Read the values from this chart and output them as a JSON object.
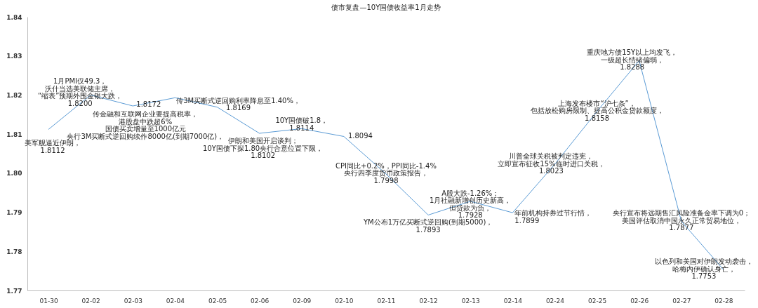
{
  "chart_data": {
    "type": "line",
    "title": "债市复盘—10Y国债收益率1月走势",
    "categories": [
      "01-30",
      "02-02",
      "02-03",
      "02-04",
      "02-05",
      "02-06",
      "02-09",
      "02-10",
      "02-11",
      "02-12",
      "02-13",
      "02-14",
      "02-24",
      "02-25",
      "02-26",
      "02-27",
      "02-28"
    ],
    "series": [
      {
        "color": "#5b9bd5",
        "values": [
          1.8112,
          1.82,
          1.8172,
          1.8193,
          1.8169,
          1.8102,
          1.8114,
          1.8094,
          1.7998,
          1.7893,
          1.7928,
          1.7899,
          1.8023,
          1.8158,
          1.8288,
          1.7877,
          1.7753
        ],
        "value_labels": [
          "1.8112",
          "1.8200",
          "1.8172",
          null,
          "1.8169",
          "1.8102",
          "1.8114",
          "1.8094",
          "1.7998",
          "1.7893",
          "1.7928",
          "1.7899",
          "1.8023",
          "1.8158",
          "1.8288",
          "1.7877",
          "1.7753"
        ]
      }
    ],
    "ylim": [
      1.77,
      1.84
    ],
    "yticks": [
      1.77,
      1.78,
      1.79,
      {
        "value": 1.8,
        "label": "1.80"
      },
      1.81,
      1.82,
      1.83,
      1.84
    ],
    "grid": false,
    "marker": "none",
    "line_style": "solid",
    "annotations": [
      {
        "text": "美军舰逼近伊朗，",
        "x": "01-30",
        "y": 1.8112
      },
      {
        "text": "1月PMI仅49.3，",
        "x": "02-02",
        "y": 1.82
      },
      {
        "text": "沃什当选美联储主席，",
        "x": "02-02",
        "y": 1.82
      },
      {
        "text": "“缩表”预期外围金银大跌，",
        "x": "02-02",
        "y": 1.82
      },
      {
        "text": "传金融和互联网企业要提高税率，",
        "x": "02-03",
        "y": 1.8172
      },
      {
        "text": "港股盘中跌超6%",
        "x": "02-03",
        "y": 1.8172
      },
      "国债买卖增量至1000亿元",
      "央行3M买断式逆回购续作8000亿(到期7000亿)，",
      {
        "text": "传3M买断式逆回购利率降息至1.40%，",
        "x": "02-05",
        "y": 1.8169
      },
      {
        "text": "伊朗和美国开启谈判；",
        "x": "02-06",
        "y": 1.8102
      },
      {
        "text": "10Y国债下探1.80央行合意位置下限，",
        "x": "02-06",
        "y": 1.8102
      },
      {
        "text": "10Y国债破1.8，",
        "x": "02-09",
        "y": 1.8114
      },
      {
        "text": "CPI同比+0.2%，PPI同比-1.4%",
        "x": "02-11",
        "y": 1.7998
      },
      {
        "text": "央行四季度货币政策报告，",
        "x": "02-11",
        "y": 1.7998
      },
      {
        "text": "YM公布1万亿买断式逆回购(到期5000)，",
        "x": "02-12",
        "y": 1.7893
      },
      {
        "text": "A股大跌-1.26%；",
        "x": "02-13",
        "y": 1.7928
      },
      {
        "text": "1月社融新增创历史新高，",
        "x": "02-13",
        "y": 1.7928
      },
      {
        "text": "但贷款为负，",
        "x": "02-13",
        "y": 1.7928
      },
      {
        "text": "年前机构持券过节行情，",
        "x": "02-14",
        "y": 1.7899
      },
      {
        "text": "川普全球关税被判定违宪，",
        "x": "02-24",
        "y": 1.8023
      },
      {
        "text": "立即宣布征收15%临时进口关税，",
        "x": "02-24",
        "y": 1.8023
      },
      {
        "text": "上海发布楼市“沪七条”，",
        "x": "02-25",
        "y": 1.8158
      },
      {
        "text": "包括放松购房限制、提高公积金贷款额度，",
        "x": "02-25",
        "y": 1.8158
      },
      {
        "text": "重庆地方债15Y以上均发飞，",
        "x": "02-26",
        "y": 1.8288
      },
      {
        "text": "一级超长情绪偏弱，",
        "x": "02-26",
        "y": 1.8288
      },
      {
        "text": "央行宣布将远期售汇风险准备金率下调为0；",
        "x": "02-27",
        "y": 1.7877
      },
      {
        "text": "美国评估取消中国永久正常贸易地位，",
        "x": "02-27",
        "y": 1.7877
      },
      {
        "text": "以色列和美国对伊朗发动袭击，",
        "x": "02-28",
        "y": 1.7753
      },
      {
        "text": "哈梅内伊确认身亡，",
        "x": "02-28",
        "y": 1.7753
      }
    ]
  }
}
